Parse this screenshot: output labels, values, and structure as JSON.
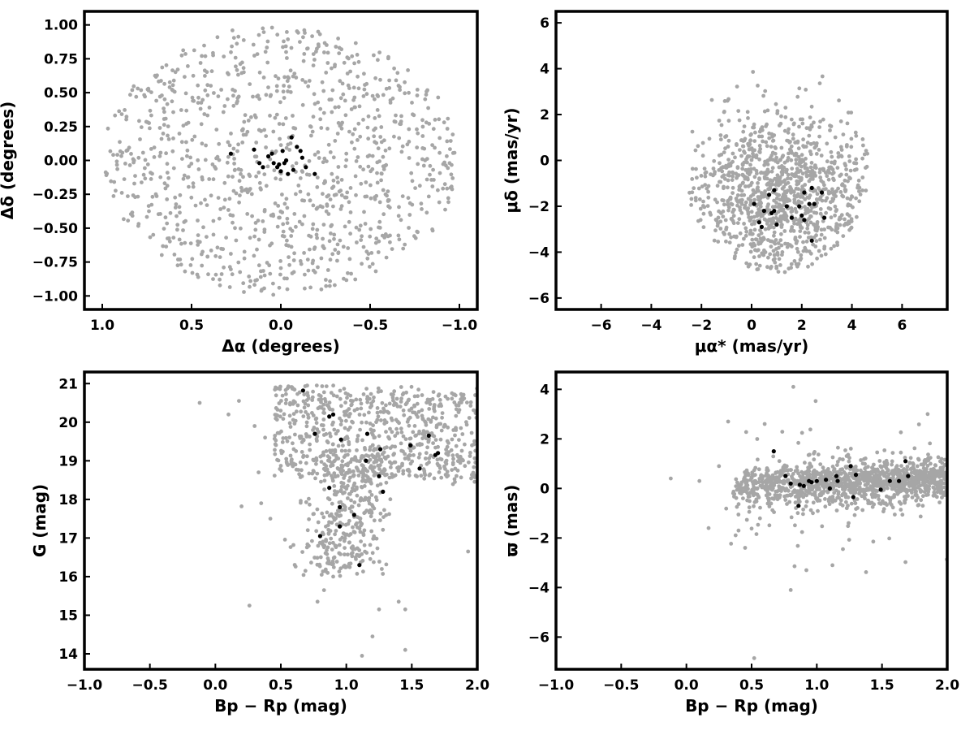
{
  "chart_data": [
    {
      "type": "scatter",
      "xlabel": "Δα (degrees)",
      "ylabel": "Δδ (degrees)",
      "xlim": [
        1.1,
        -1.1
      ],
      "ylim": [
        -1.1,
        1.1
      ],
      "x_inverted": true,
      "grid": false,
      "xticks": [
        1.0,
        0.5,
        0.0,
        -0.5,
        -1.0
      ],
      "xtick_labels": [
        "1.0",
        "0.5",
        "0.0",
        "−0.5",
        "−1.0"
      ],
      "yticks": [
        -1.0,
        -0.75,
        -0.5,
        -0.25,
        0.0,
        0.25,
        0.5,
        0.75,
        1.0
      ],
      "ytick_labels": [
        "−1.00",
        "−0.75",
        "−0.50",
        "−0.25",
        "0.00",
        "0.25",
        "0.50",
        "0.75",
        "1.00"
      ],
      "field_distribution": {
        "shape": "disk",
        "center": [
          0,
          0
        ],
        "radius": 1.0,
        "count": 1050
      },
      "field_color": "#a6a6a6",
      "member_color": "#000000",
      "members": [
        [
          0.28,
          0.05
        ],
        [
          0.15,
          0.08
        ],
        [
          0.12,
          -0.02
        ],
        [
          0.1,
          -0.05
        ],
        [
          0.07,
          0.03
        ],
        [
          0.05,
          0.05
        ],
        [
          0.04,
          -0.02
        ],
        [
          0.02,
          -0.05
        ],
        [
          0.01,
          -0.03
        ],
        [
          -0.01,
          0.07
        ],
        [
          -0.02,
          -0.02
        ],
        [
          -0.04,
          -0.1
        ],
        [
          -0.06,
          0.17
        ],
        [
          -0.07,
          -0.07
        ],
        [
          -0.09,
          0.1
        ],
        [
          -0.11,
          0.07
        ],
        [
          -0.12,
          0.02
        ],
        [
          -0.14,
          -0.05
        ],
        [
          -0.19,
          -0.1
        ],
        [
          -0.03,
          0.0
        ],
        [
          0.0,
          -0.08
        ]
      ]
    },
    {
      "type": "scatter",
      "xlabel": "μα* (mas/yr)",
      "ylabel": "μδ (mas/yr)",
      "xlim": [
        -7.8,
        7.8
      ],
      "ylim": [
        -6.5,
        6.5
      ],
      "grid": false,
      "xticks": [
        -6,
        -4,
        -2,
        0,
        2,
        4,
        6
      ],
      "xtick_labels": [
        "−6",
        "−4",
        "−2",
        "0",
        "2",
        "4",
        "6"
      ],
      "yticks": [
        -6,
        -4,
        -2,
        0,
        2,
        4,
        6
      ],
      "ytick_labels": [
        "−6",
        "−4",
        "−2",
        "0",
        "2",
        "4",
        "6"
      ],
      "field_distribution": {
        "shape": "blob",
        "center": [
          1.2,
          -1.6
        ],
        "spread": [
          2.0,
          1.9
        ],
        "xrange": [
          -4.6,
          5.0
        ],
        "yrange": [
          -4.9,
          4.6
        ],
        "count": 1100
      },
      "field_color": "#a6a6a6",
      "member_color": "#000000",
      "members": [
        [
          0.1,
          -1.9
        ],
        [
          0.3,
          -2.7
        ],
        [
          0.4,
          -2.9
        ],
        [
          0.5,
          -2.2
        ],
        [
          0.7,
          -1.5
        ],
        [
          0.8,
          -2.3
        ],
        [
          0.9,
          -2.2
        ],
        [
          0.9,
          -1.3
        ],
        [
          1.0,
          -2.8
        ],
        [
          1.4,
          -2.0
        ],
        [
          1.6,
          -2.5
        ],
        [
          1.9,
          -2.0
        ],
        [
          2.0,
          -2.4
        ],
        [
          2.1,
          -2.6
        ],
        [
          2.1,
          -1.4
        ],
        [
          2.3,
          -1.9
        ],
        [
          2.4,
          -1.2
        ],
        [
          2.4,
          -3.5
        ],
        [
          2.5,
          -1.9
        ],
        [
          2.8,
          -1.4
        ],
        [
          2.9,
          -2.5
        ]
      ]
    },
    {
      "type": "scatter",
      "xlabel": "Bp − Rp (mag)",
      "ylabel": "G (mag)",
      "xlim": [
        -1.0,
        2.0
      ],
      "ylim": [
        13.6,
        21.3
      ],
      "grid": false,
      "xticks": [
        -1.0,
        -0.5,
        0.0,
        0.5,
        1.0,
        1.5,
        2.0
      ],
      "xtick_labels": [
        "−1.0",
        "−0.5",
        "0.0",
        "0.5",
        "1.0",
        "1.5",
        "2.0"
      ],
      "yticks": [
        14,
        15,
        16,
        17,
        18,
        19,
        20,
        21
      ],
      "ytick_labels": [
        "14",
        "15",
        "16",
        "17",
        "18",
        "19",
        "20",
        "21"
      ],
      "field_distribution": {
        "shape": "cmd",
        "count": 1150
      },
      "field_color": "#a6a6a6",
      "member_color": "#000000",
      "members": [
        [
          0.67,
          20.82
        ],
        [
          0.76,
          19.7
        ],
        [
          0.8,
          17.05
        ],
        [
          0.87,
          20.15
        ],
        [
          0.87,
          18.3
        ],
        [
          0.9,
          20.2
        ],
        [
          0.95,
          17.8
        ],
        [
          0.95,
          17.3
        ],
        [
          0.96,
          19.55
        ],
        [
          1.06,
          17.6
        ],
        [
          1.1,
          16.3
        ],
        [
          1.15,
          19.0
        ],
        [
          1.16,
          19.7
        ],
        [
          1.25,
          18.6
        ],
        [
          1.26,
          19.3
        ],
        [
          1.28,
          18.2
        ],
        [
          1.49,
          19.4
        ],
        [
          1.56,
          18.8
        ],
        [
          1.63,
          19.65
        ],
        [
          1.68,
          19.15
        ],
        [
          1.7,
          19.2
        ]
      ]
    },
    {
      "type": "scatter",
      "xlabel": "Bp − Rp (mag)",
      "ylabel": "ϖ (mas)",
      "xlim": [
        -1.0,
        2.0
      ],
      "ylim": [
        -7.3,
        4.7
      ],
      "grid": false,
      "xticks": [
        -1.0,
        -0.5,
        0.0,
        0.5,
        1.0,
        1.5,
        2.0
      ],
      "xtick_labels": [
        "−1.0",
        "−0.5",
        "0.0",
        "0.5",
        "1.0",
        "1.5",
        "2.0"
      ],
      "yticks": [
        -6,
        -4,
        -2,
        0,
        2,
        4
      ],
      "ytick_labels": [
        "−6",
        "−4",
        "−2",
        "0",
        "2",
        "4"
      ],
      "field_distribution": {
        "shape": "band",
        "count": 1300
      },
      "field_color": "#a6a6a6",
      "member_color": "#000000",
      "members": [
        [
          0.67,
          1.5
        ],
        [
          0.76,
          0.5
        ],
        [
          0.8,
          0.2
        ],
        [
          0.86,
          -0.7
        ],
        [
          0.87,
          0.15
        ],
        [
          0.9,
          0.1
        ],
        [
          0.94,
          0.3
        ],
        [
          0.96,
          0.25
        ],
        [
          1.07,
          0.35
        ],
        [
          1.1,
          0.0
        ],
        [
          1.15,
          0.5
        ],
        [
          1.16,
          0.3
        ],
        [
          1.26,
          0.9
        ],
        [
          1.28,
          -0.35
        ],
        [
          1.3,
          0.55
        ],
        [
          1.49,
          -0.05
        ],
        [
          1.56,
          0.3
        ],
        [
          1.63,
          0.3
        ],
        [
          1.68,
          1.1
        ],
        [
          1.7,
          0.5
        ],
        [
          1.0,
          0.3
        ]
      ]
    }
  ]
}
